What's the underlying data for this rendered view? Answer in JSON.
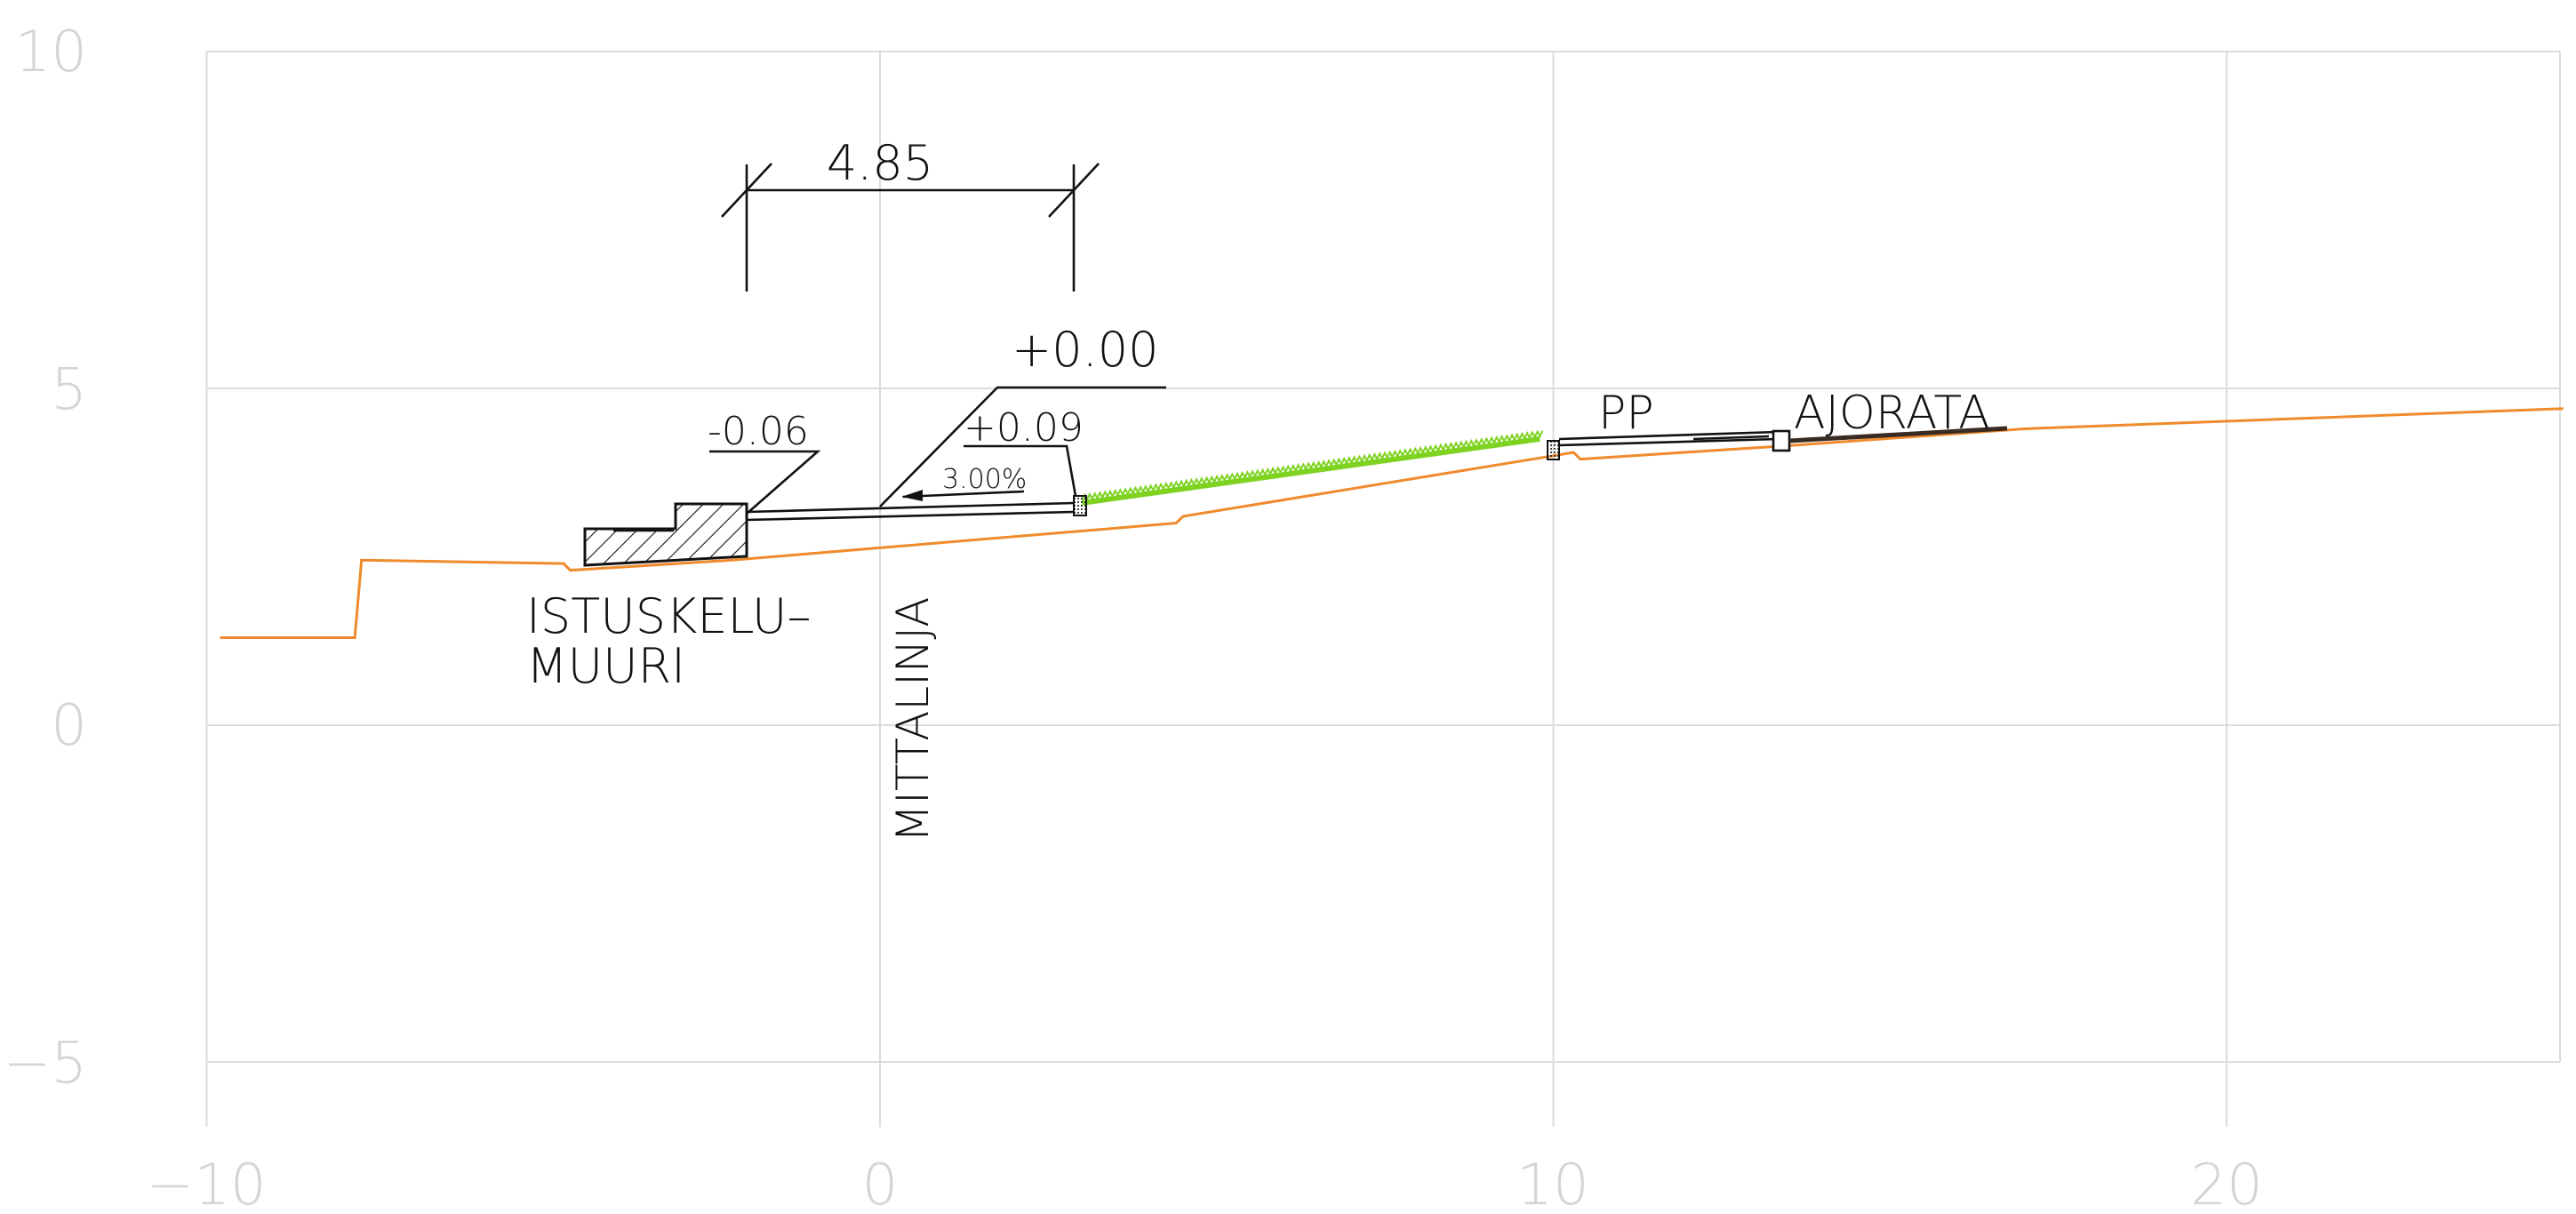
{
  "chart_data": {
    "type": "cross-section",
    "xlim": [
      -10,
      25
    ],
    "ylim": [
      -6,
      10
    ],
    "xticks": [
      -10,
      0,
      10,
      20
    ],
    "yticks": [
      10,
      5,
      0,
      -5
    ],
    "xtick_labels": [
      "−10",
      "0",
      "10",
      "20"
    ],
    "ytick_labels": [
      "10",
      "5",
      "0",
      "−5"
    ],
    "grid": true,
    "ground_line": {
      "color": "#f08a2c",
      "x": [
        -9.8,
        -7.8,
        -7.7,
        -4.7,
        -4.6,
        -2.2,
        4.4,
        4.5,
        10.0,
        10.3,
        10.4,
        13.5,
        17.0,
        25.0
      ],
      "y": [
        1.3,
        1.3,
        2.45,
        2.4,
        2.3,
        2.45,
        3.0,
        3.1,
        4.0,
        4.05,
        3.95,
        4.15,
        4.4,
        4.7
      ]
    },
    "grass_slope": {
      "color": "#7ed321",
      "x": [
        3.0,
        9.8
      ],
      "y": [
        3.3,
        4.25
      ]
    },
    "annotations": {
      "dimension": "4.85",
      "level_main": "+0.00",
      "level_left": "-0.06",
      "level_mid": "+0.09",
      "slope": "3.00%",
      "wall_label_1": "ISTUSKELU–",
      "wall_label_2": "MUURI",
      "survey_line": "MITTALINJA",
      "pp": "PP",
      "roadway": "AJORATA"
    }
  }
}
